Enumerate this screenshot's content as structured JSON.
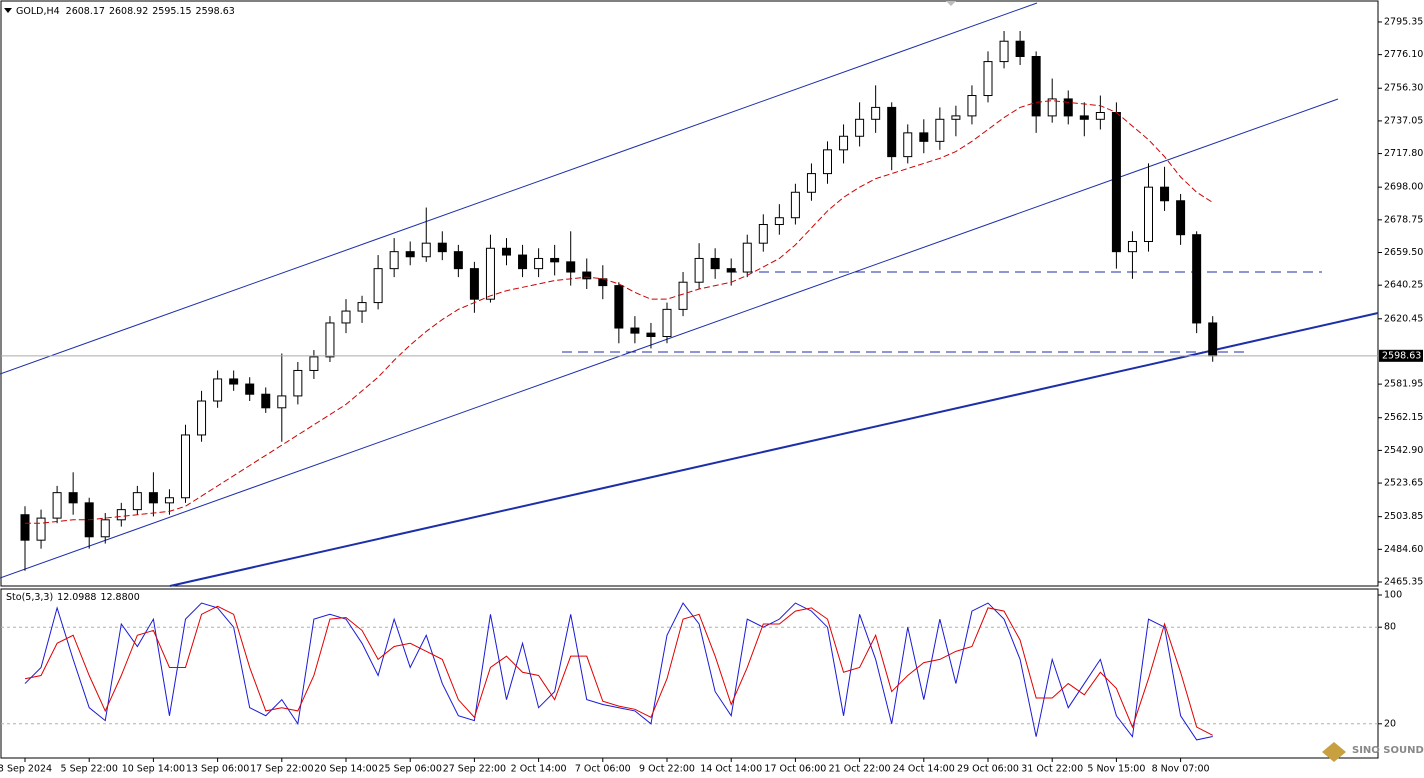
{
  "chart_data": [
    {
      "type": "candlestick",
      "title": "GOLD,H4",
      "readout": [
        2608.17,
        2608.92,
        2595.15,
        2598.63
      ],
      "categories": [
        "3 Sep 2024",
        null,
        null,
        null,
        "5 Sep 22:00",
        null,
        null,
        null,
        "10 Sep 14:00",
        null,
        null,
        null,
        "13 Sep 06:00",
        null,
        null,
        null,
        "17 Sep 22:00",
        null,
        null,
        null,
        "20 Sep 14:00",
        null,
        null,
        null,
        "25 Sep 06:00",
        null,
        null,
        null,
        "27 Sep 22:00",
        null,
        null,
        null,
        "2 Oct 14:00",
        null,
        null,
        null,
        "7 Oct 06:00",
        null,
        null,
        null,
        "9 Oct 22:00",
        null,
        null,
        null,
        "14 Oct 14:00",
        null,
        null,
        null,
        "17 Oct 06:00",
        null,
        null,
        null,
        "21 Oct 22:00",
        null,
        null,
        null,
        "24 Oct 14:00",
        null,
        null,
        null,
        "29 Oct 06:00",
        null,
        null,
        null,
        "31 Oct 22:00",
        null,
        null,
        null,
        "5 Nov 15:00",
        null,
        null,
        null,
        "8 Nov 07:00",
        null,
        null
      ],
      "open": [
        2505,
        2490,
        2503,
        2518,
        2512,
        2492,
        2502,
        2508,
        2518,
        2512,
        2515,
        2552,
        2572,
        2585,
        2582,
        2576,
        2568,
        2575,
        2590,
        2598,
        2618,
        2625,
        2630,
        2650,
        2660,
        2657,
        2665,
        2660,
        2650,
        2632,
        2662,
        2658,
        2650,
        2656,
        2654,
        2648,
        2644,
        2640,
        2615,
        2612,
        2610,
        2626,
        2642,
        2656,
        2650,
        2648,
        2665,
        2676,
        2680,
        2695,
        2706,
        2720,
        2728,
        2738,
        2745,
        2716,
        2730,
        2725,
        2738,
        2740,
        2752,
        2772,
        2784,
        2775,
        2740,
        2750,
        2740,
        2738,
        2742,
        2660,
        2666,
        2698,
        2690,
        2670,
        2618
      ],
      "high": [
        2510,
        2508,
        2522,
        2530,
        2515,
        2506,
        2512,
        2522,
        2530,
        2520,
        2558,
        2578,
        2590,
        2590,
        2586,
        2580,
        2600,
        2595,
        2602,
        2622,
        2632,
        2634,
        2658,
        2668,
        2666,
        2686,
        2672,
        2664,
        2654,
        2670,
        2668,
        2664,
        2662,
        2664,
        2672,
        2656,
        2652,
        2642,
        2622,
        2618,
        2630,
        2648,
        2665,
        2662,
        2656,
        2670,
        2682,
        2688,
        2700,
        2712,
        2725,
        2735,
        2748,
        2758,
        2748,
        2735,
        2738,
        2745,
        2746,
        2758,
        2778,
        2790,
        2790,
        2778,
        2762,
        2755,
        2748,
        2752,
        2748,
        2672,
        2712,
        2710,
        2694,
        2672,
        2622
      ],
      "low": [
        2472,
        2485,
        2500,
        2505,
        2485,
        2488,
        2498,
        2505,
        2504,
        2505,
        2512,
        2548,
        2568,
        2578,
        2572,
        2565,
        2548,
        2570,
        2585,
        2595,
        2612,
        2618,
        2626,
        2645,
        2652,
        2654,
        2655,
        2645,
        2624,
        2630,
        2652,
        2645,
        2645,
        2646,
        2640,
        2638,
        2632,
        2606,
        2606,
        2603,
        2606,
        2622,
        2638,
        2644,
        2640,
        2645,
        2660,
        2670,
        2676,
        2690,
        2700,
        2712,
        2722,
        2730,
        2708,
        2712,
        2718,
        2720,
        2728,
        2735,
        2748,
        2768,
        2770,
        2730,
        2736,
        2735,
        2728,
        2732,
        2650,
        2644,
        2660,
        2684,
        2664,
        2612,
        2595.15
      ],
      "close": [
        2490,
        2503,
        2518,
        2512,
        2492,
        2502,
        2508,
        2518,
        2512,
        2515,
        2552,
        2572,
        2585,
        2582,
        2576,
        2568,
        2575,
        2590,
        2598,
        2618,
        2625,
        2630,
        2650,
        2660,
        2657,
        2665,
        2660,
        2650,
        2632,
        2662,
        2658,
        2650,
        2656,
        2654,
        2648,
        2644,
        2640,
        2615,
        2612,
        2610,
        2626,
        2642,
        2656,
        2650,
        2648,
        2665,
        2676,
        2680,
        2695,
        2706,
        2720,
        2728,
        2738,
        2745,
        2716,
        2730,
        2725,
        2738,
        2740,
        2752,
        2772,
        2784,
        2775,
        2740,
        2750,
        2740,
        2738,
        2742,
        2660,
        2666,
        2698,
        2690,
        2670,
        2618,
        2598.63
      ],
      "up_color": "#ffffff",
      "down_color": "#000000",
      "wick_color": "#000000",
      "moving_average": {
        "color": "#cc0000",
        "values": [
          2500,
          2500,
          2501,
          2502,
          2502,
          2503,
          2504,
          2505,
          2506,
          2507,
          2510,
          2516,
          2522,
          2528,
          2534,
          2540,
          2546,
          2552,
          2558,
          2564,
          2570,
          2578,
          2586,
          2596,
          2605,
          2613,
          2620,
          2626,
          2630,
          2634,
          2637,
          2639,
          2641,
          2643,
          2644,
          2645,
          2644,
          2641,
          2636,
          2632,
          2632,
          2635,
          2638,
          2640,
          2642,
          2646,
          2651,
          2656,
          2664,
          2674,
          2684,
          2692,
          2698,
          2703,
          2706,
          2709,
          2712,
          2715,
          2719,
          2725,
          2732,
          2739,
          2745,
          2748,
          2749,
          2748,
          2747,
          2746,
          2742,
          2734,
          2726,
          2716,
          2704,
          2695,
          2689
        ]
      },
      "current_price": 2598.63,
      "ylim": [
        2463.0,
        2807.7
      ],
      "yticks": [
        2795.35,
        {
          "value": 2776.1,
          "label": "2776.10"
        },
        {
          "value": 2756.3,
          "label": "2756.30"
        },
        2737.05,
        {
          "value": 2717.8,
          "label": "2717.80"
        },
        {
          "value": 2698,
          "label": "2698.00"
        },
        2678.75,
        {
          "value": 2659.5,
          "label": "2659.50"
        },
        2640.25,
        2620.45,
        2581.95,
        2562.15,
        {
          "value": 2542.9,
          "label": "2542.90"
        },
        2523.65,
        2503.85,
        {
          "value": 2484.6,
          "label": "2484.60"
        },
        2465.35
      ]
    },
    {
      "type": "line",
      "title": "Sto(5,3,3)",
      "readout": [
        12.0988,
        {
          "value": 12.88,
          "label": "12.8800"
        }
      ],
      "series": [
        {
          "color": "#1a1ad6",
          "values": [
            45,
            55,
            92,
            60,
            30,
            22,
            82,
            68,
            85,
            25,
            85,
            95,
            92,
            80,
            30,
            25,
            35,
            20,
            85,
            88,
            85,
            70,
            50,
            85,
            55,
            75,
            45,
            25,
            22,
            88,
            35,
            70,
            30,
            40,
            88,
            35,
            32,
            30,
            28,
            20,
            75,
            95,
            82,
            40,
            25,
            85,
            80,
            85,
            95,
            90,
            80,
            25,
            88,
            60,
            20,
            80,
            35,
            85,
            45,
            90,
            95,
            85,
            60,
            12,
            60,
            30,
            45,
            60,
            25,
            12,
            85,
            80,
            25,
            10,
            12.0988
          ]
        },
        {
          "color": "#e00000",
          "values": [
            48,
            50,
            70,
            75,
            50,
            28,
            50,
            75,
            78,
            55,
            55,
            88,
            93,
            88,
            55,
            28,
            30,
            28,
            50,
            85,
            86,
            78,
            60,
            68,
            70,
            65,
            60,
            35,
            24,
            55,
            62,
            52,
            50,
            35,
            62,
            62,
            34,
            31,
            29,
            24,
            48,
            85,
            88,
            62,
            32,
            55,
            82,
            82,
            90,
            92,
            85,
            52,
            55,
            75,
            40,
            50,
            58,
            60,
            65,
            68,
            92,
            90,
            72,
            36,
            36,
            45,
            38,
            52,
            42,
            18,
            48,
            82,
            52,
            18,
            12.88
          ]
        }
      ],
      "ylim": [
        0,
        100
      ],
      "yticks": [
        100,
        80,
        20
      ]
    }
  ],
  "watermark": "SINO SOUND"
}
